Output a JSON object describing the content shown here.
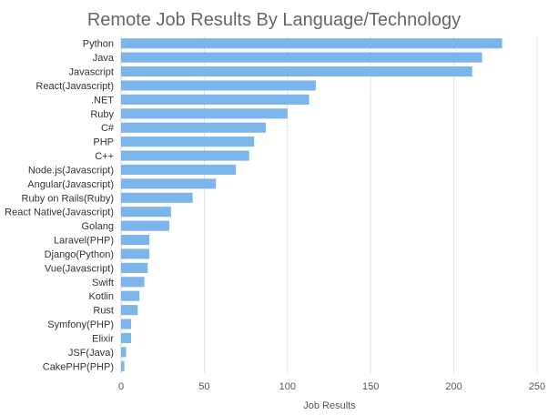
{
  "chart_data": {
    "type": "bar",
    "orientation": "horizontal",
    "title": "Remote Job Results By Language/Technology",
    "xlabel": "Job Results",
    "ylabel": "",
    "xlim": [
      0,
      250
    ],
    "xticks": [
      0,
      50,
      100,
      150,
      200,
      250
    ],
    "grid": true,
    "bar_color": "#7cb5ec",
    "categories": [
      "Python",
      "Java",
      "Javascript",
      "React(Javascript)",
      ".NET",
      "Ruby",
      "C#",
      "PHP",
      "C++",
      "Node.js(Javascript)",
      "Angular(Javascript)",
      "Ruby on Rails(Ruby)",
      "React Native(Javascript)",
      "Golang",
      "Laravel(PHP)",
      "Django(Python)",
      "Vue(Javascript)",
      "Swift",
      "Kotlin",
      "Rust",
      "Symfony(PHP)",
      "Elixir",
      "JSF(Java)",
      "CakePHP(PHP)"
    ],
    "values": [
      229,
      217,
      211,
      117,
      113,
      100,
      87,
      80,
      77,
      69,
      57,
      43,
      30,
      29,
      17,
      17,
      16,
      14,
      11,
      10,
      6,
      6,
      3,
      2
    ]
  }
}
